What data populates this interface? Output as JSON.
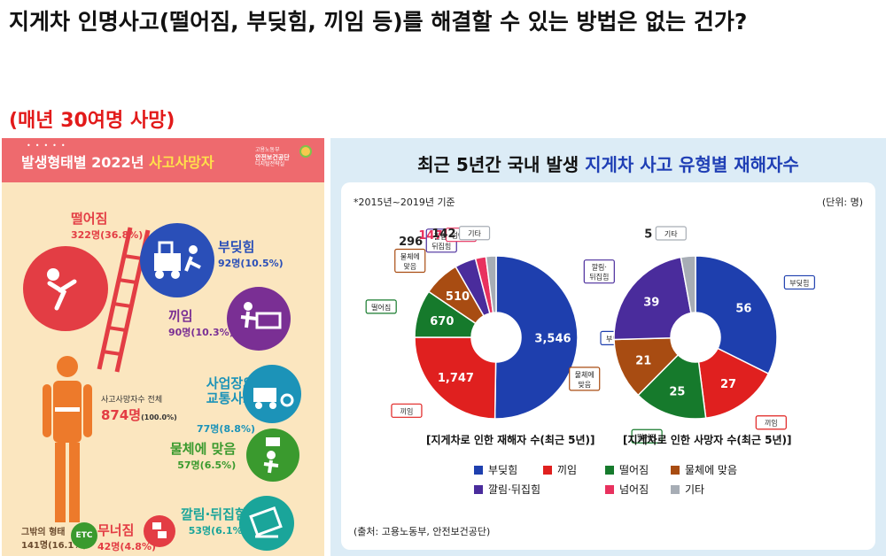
{
  "title": "지게차 인명사고(떨어짐, 부딪힘, 끼임 등)를 해결할 수 있는 방법은 없는 건가?",
  "subtitle": "(매년 30여명 사망)",
  "left_infographic": {
    "header_prefix": "발생형태별 2022년 ",
    "header_highlight": "사고사망자",
    "agency_line1": "고용노동부",
    "agency_line2": "안전보건공단",
    "agency_line3": "디지털전략실",
    "total_label": "사고사망자수 전체",
    "total_value": "874명",
    "total_pct": "(100.0%)",
    "categories": [
      {
        "name": "떨어짐",
        "value": "322명(36.8%)",
        "color": "#e33d44"
      },
      {
        "name": "부딪힘",
        "value": "92명(10.5%)",
        "color": "#2a4fb8"
      },
      {
        "name": "끼임",
        "value": "90명(10.3%)",
        "color": "#7a2f94"
      },
      {
        "name": "사업장외\n교통사고",
        "value": "77명(8.8%)",
        "color": "#1c93b8"
      },
      {
        "name": "물체에 맞음",
        "value": "57명(6.5%)",
        "color": "#3a9a2e"
      },
      {
        "name": "깔림·뒤집힘",
        "value": "53명(6.1%)",
        "color": "#1aa59a"
      },
      {
        "name": "무너짐",
        "value": "42명(4.8%)",
        "color": "#e33d44"
      },
      {
        "name": "그밖의 형태",
        "value": "141명(16.1%)",
        "color": "#6b4b2e"
      }
    ],
    "etc_badge": "ETC"
  },
  "chart_data": {
    "type": "pie",
    "title_prefix": "최근 5년간 국내 발생 ",
    "title_highlight": "지게차 사고 유형별 재해자수",
    "basis": "*2015년~2019년 기준",
    "unit": "(단위: 명)",
    "source": "(출처: 고용노동부, 안전보건공단)",
    "categories": [
      "부딪힘",
      "끼임",
      "떨어짐",
      "물체에 맞음",
      "깔림·뒤집힘",
      "넘어짐",
      "기타"
    ],
    "legend_labels": [
      "부딪힘",
      "끼임",
      "떨어짐",
      "물체에 맞음",
      "깔림·뒤집힘",
      "넘어짐",
      "기타"
    ],
    "colors": [
      "#1e3fae",
      "#e0201f",
      "#167a2c",
      "#a84c12",
      "#4a2c9c",
      "#e8315e",
      "#a7adb5"
    ],
    "series": [
      {
        "name": "[지게차로 인한 재해자 수(최근 5년)]",
        "values": [
          3546,
          1747,
          670,
          510,
          296,
          147,
          142
        ],
        "value_labels": [
          "3,546",
          "1,747",
          "670",
          "510",
          "296",
          "147",
          "142"
        ],
        "slice_labels": [
          "부딪힘",
          "끼임",
          "떨어짐",
          "물체에\n맞음",
          "깔림·\n뒤집힘",
          "넘어짐",
          "기타"
        ]
      },
      {
        "name": "[지게차로 인한 사망자 수(최근 5년)]",
        "values": [
          56,
          27,
          25,
          21,
          39,
          0,
          5
        ],
        "value_labels": [
          "56",
          "27",
          "25",
          "21",
          "39",
          "",
          "5"
        ],
        "slice_labels": [
          "부딪힘",
          "끼임",
          "떨어짐",
          "물체에\n맞음",
          "깔림·\n뒤집힘",
          "",
          "기타"
        ]
      }
    ]
  }
}
